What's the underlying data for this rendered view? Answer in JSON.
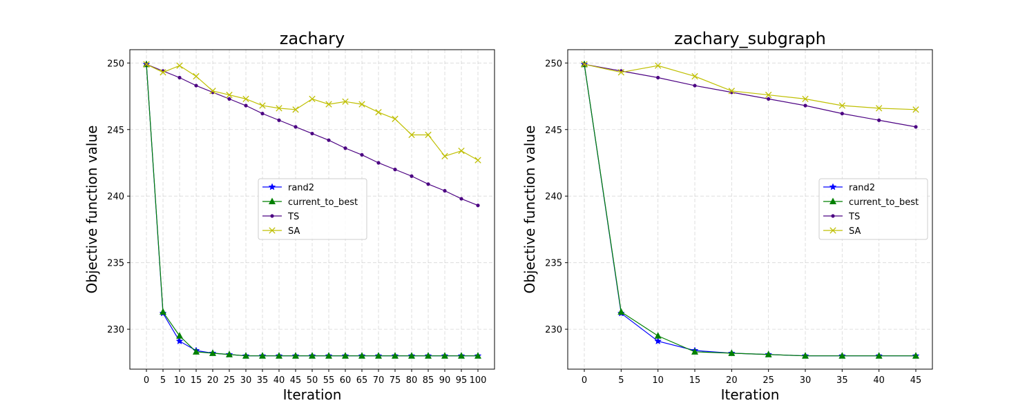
{
  "colors": {
    "rand2": "#0000ff",
    "current_to_best": "#008000",
    "TS": "#4b0082",
    "SA": "#bfbf00",
    "grid": "#b0b0b0"
  },
  "chart_data": [
    {
      "type": "line",
      "title": "zachary",
      "xlabel": "Iteration",
      "ylabel": "Objective function value",
      "x": [
        0,
        5,
        10,
        15,
        20,
        25,
        30,
        35,
        40,
        45,
        50,
        55,
        60,
        65,
        70,
        75,
        80,
        85,
        90,
        95,
        100
      ],
      "x_ticks": [
        "0",
        "5",
        "10",
        "15",
        "20",
        "25",
        "30",
        "35",
        "40",
        "45",
        "50",
        "55",
        "60",
        "65",
        "70",
        "75",
        "80",
        "85",
        "90",
        "95",
        "100"
      ],
      "y_ticks": [
        "230",
        "235",
        "240",
        "245",
        "250"
      ],
      "xlim": [
        -5,
        105
      ],
      "ylim": [
        227,
        251
      ],
      "grid": true,
      "legend_position": "center-right",
      "series": [
        {
          "name": "rand2",
          "marker": "star",
          "values": [
            249.9,
            231.2,
            229.1,
            228.4,
            228.2,
            228.1,
            228.0,
            228.0,
            228.0,
            228.0,
            228.0,
            228.0,
            228.0,
            228.0,
            228.0,
            228.0,
            228.0,
            228.0,
            228.0,
            228.0,
            228.0
          ]
        },
        {
          "name": "current_to_best",
          "marker": "triangle",
          "values": [
            249.9,
            231.3,
            229.5,
            228.3,
            228.2,
            228.1,
            228.0,
            228.0,
            228.0,
            228.0,
            228.0,
            228.0,
            228.0,
            228.0,
            228.0,
            228.0,
            228.0,
            228.0,
            228.0,
            228.0,
            228.0
          ]
        },
        {
          "name": "TS",
          "marker": "dot",
          "values": [
            249.9,
            249.4,
            248.9,
            248.3,
            247.8,
            247.3,
            246.8,
            246.2,
            245.7,
            245.2,
            244.7,
            244.2,
            243.6,
            243.1,
            242.5,
            242.0,
            241.5,
            240.9,
            240.4,
            239.8,
            239.3
          ]
        },
        {
          "name": "SA",
          "marker": "x",
          "values": [
            249.9,
            249.3,
            249.8,
            249.0,
            247.9,
            247.6,
            247.3,
            246.8,
            246.6,
            246.5,
            247.3,
            246.9,
            247.1,
            246.9,
            246.3,
            245.8,
            244.6,
            244.6,
            243.0,
            243.4,
            242.7
          ]
        }
      ]
    },
    {
      "type": "line",
      "title": "zachary_subgraph",
      "xlabel": "Iteration",
      "ylabel": "Objective function value",
      "x": [
        0,
        5,
        10,
        15,
        20,
        25,
        30,
        35,
        40,
        45
      ],
      "x_ticks": [
        "0",
        "5",
        "10",
        "15",
        "20",
        "25",
        "30",
        "35",
        "40",
        "45"
      ],
      "y_ticks": [
        "230",
        "235",
        "240",
        "245",
        "250"
      ],
      "xlim": [
        -2.25,
        47.25
      ],
      "ylim": [
        227,
        251
      ],
      "grid": true,
      "legend_position": "center-right",
      "series": [
        {
          "name": "rand2",
          "marker": "star",
          "values": [
            249.9,
            231.2,
            229.1,
            228.4,
            228.2,
            228.1,
            228.0,
            228.0,
            228.0,
            228.0
          ]
        },
        {
          "name": "current_to_best",
          "marker": "triangle",
          "values": [
            249.9,
            231.3,
            229.5,
            228.3,
            228.2,
            228.1,
            228.0,
            228.0,
            228.0,
            228.0
          ]
        },
        {
          "name": "TS",
          "marker": "dot",
          "values": [
            249.9,
            249.4,
            248.9,
            248.3,
            247.8,
            247.3,
            246.8,
            246.2,
            245.7,
            245.2
          ]
        },
        {
          "name": "SA",
          "marker": "x",
          "values": [
            249.9,
            249.3,
            249.8,
            249.0,
            247.9,
            247.6,
            247.3,
            246.8,
            246.6,
            246.5
          ]
        }
      ]
    }
  ]
}
